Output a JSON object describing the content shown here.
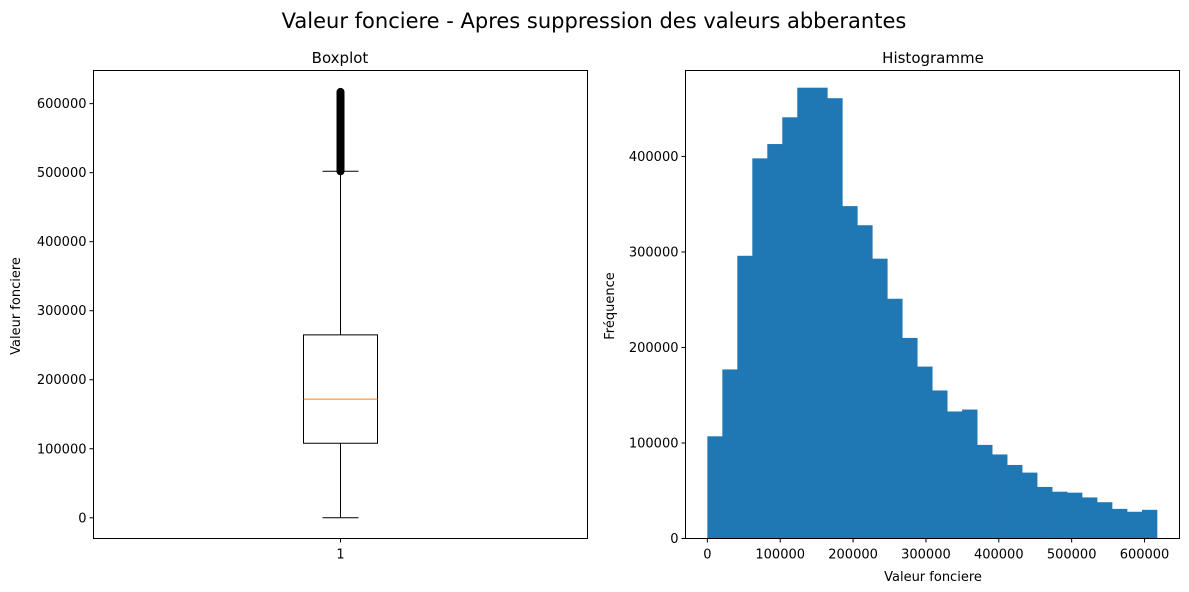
{
  "figure": {
    "suptitle": "Valeur fonciere - Apres suppression des valeurs abberantes"
  },
  "colors": {
    "box": "#000000",
    "median": "#ff7f0e",
    "bars": "#1f77b4"
  },
  "chart_data": [
    {
      "type": "box",
      "title": "Boxplot",
      "xlabel": "",
      "ylabel": "Valeur fonciere",
      "categories": [
        "1"
      ],
      "box": {
        "whisker_low": 0,
        "q1": 108000,
        "median": 172000,
        "q3": 265000,
        "whisker_high": 502000,
        "outlier_range": [
          502000,
          617000
        ]
      },
      "ylim": [
        -30000,
        648000
      ],
      "yticks": [
        0,
        100000,
        200000,
        300000,
        400000,
        500000,
        600000
      ],
      "ytick_labels": [
        "0",
        "100000",
        "200000",
        "300000",
        "400000",
        "500000",
        "600000"
      ]
    },
    {
      "type": "histogram",
      "title": "Histogramme",
      "xlabel": "Valeur fonciere",
      "ylabel": "Fréquence",
      "bin_start": 0,
      "bin_end": 617000,
      "values": [
        107000,
        177000,
        296000,
        398000,
        413000,
        441000,
        472000,
        472000,
        461000,
        348000,
        328000,
        293000,
        251000,
        210000,
        180000,
        155000,
        133000,
        135000,
        98000,
        88000,
        77000,
        69000,
        54000,
        49000,
        48000,
        43000,
        38000,
        31000,
        28000,
        30000
      ],
      "xlim": [
        -30000,
        648000
      ],
      "ylim": [
        0,
        490000
      ],
      "xticks": [
        0,
        100000,
        200000,
        300000,
        400000,
        500000,
        600000
      ],
      "xtick_labels": [
        "0",
        "100000",
        "200000",
        "300000",
        "400000",
        "500000",
        "600000"
      ],
      "yticks": [
        0,
        100000,
        200000,
        300000,
        400000
      ],
      "ytick_labels": [
        "0",
        "100000",
        "200000",
        "300000",
        "400000"
      ]
    }
  ]
}
